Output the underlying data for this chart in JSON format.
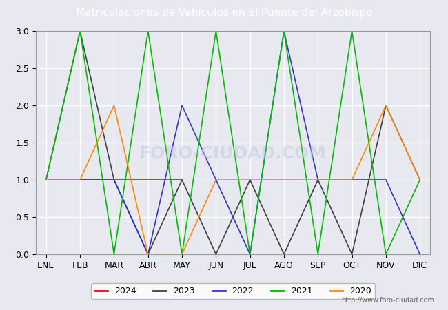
{
  "title": "Matriculaciones de Vehiculos en El Puente del Arzobispo",
  "months": [
    "ENE",
    "FEB",
    "MAR",
    "ABR",
    "MAY",
    "JUN",
    "JUL",
    "AGO",
    "SEP",
    "OCT",
    "NOV",
    "DIC"
  ],
  "series": {
    "2024": {
      "color": "#ff0000",
      "data": [
        1,
        1,
        1,
        1,
        1,
        null,
        null,
        null,
        null,
        null,
        null,
        null
      ]
    },
    "2023": {
      "color": "#404040",
      "data": [
        1,
        3,
        1,
        0,
        1,
        0,
        1,
        0,
        1,
        0,
        2,
        1
      ]
    },
    "2022": {
      "color": "#3333cc",
      "data": [
        1,
        1,
        1,
        0,
        2,
        1,
        0,
        3,
        1,
        1,
        1,
        0
      ]
    },
    "2021": {
      "color": "#00bb00",
      "data": [
        1,
        3,
        0,
        3,
        0,
        3,
        0,
        3,
        0,
        3,
        0,
        1
      ]
    },
    "2020": {
      "color": "#ff8800",
      "data": [
        1,
        1,
        2,
        0,
        0,
        1,
        1,
        1,
        1,
        1,
        2,
        1
      ]
    }
  },
  "legend_order": [
    "2024",
    "2023",
    "2022",
    "2021",
    "2020"
  ],
  "ylim": [
    0,
    3.0
  ],
  "yticks": [
    0.0,
    0.5,
    1.0,
    1.5,
    2.0,
    2.5,
    3.0
  ],
  "bg_color": "#e8e8f0",
  "title_bg": "#4488cc",
  "title_color": "white",
  "grid_color": "white",
  "watermark": "http://www.foro-ciudad.com"
}
